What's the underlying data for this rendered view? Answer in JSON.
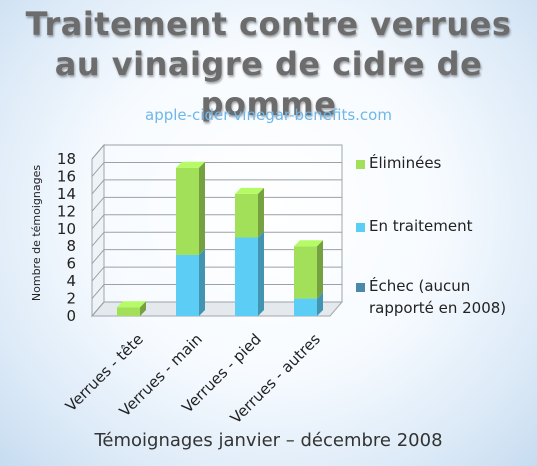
{
  "title_line1": "Traitement contre verrues",
  "title_line2": "au vinaigre de cidre de pomme",
  "website": "apple-cider-vinegar-benefits.com",
  "chart_data": {
    "type": "bar",
    "stacked": true,
    "categories": [
      "Verrues - tête",
      "Verrues - main",
      "Verrues - pied",
      "Verrues - autres"
    ],
    "series": [
      {
        "name": "Échec (aucun rapporté en 2008)",
        "color": "#4a8aa8",
        "values": [
          0,
          0,
          0,
          0
        ]
      },
      {
        "name": "En traitement",
        "color": "#5ccdf5",
        "values": [
          0,
          7,
          9,
          2
        ]
      },
      {
        "name": "Éliminées",
        "color": "#a2e05a",
        "values": [
          1,
          10,
          5,
          6
        ]
      }
    ],
    "legend_order": [
      "Éliminées",
      "En traitement",
      "Échec (aucun rapporté en 2008)"
    ],
    "legend_lines": [
      [
        "Éliminées"
      ],
      [
        "En traitement"
      ],
      [
        "Échec (aucun",
        "rapporté en 2008)"
      ]
    ],
    "ylabel": "Nombre de témoignages",
    "xlabel": "Témoignages janvier – décembre 2008",
    "ylim": [
      0,
      18
    ],
    "yticks": [
      0,
      2,
      4,
      6,
      8,
      10,
      12,
      14,
      16,
      18
    ],
    "legend_position": "right",
    "grid": true
  }
}
